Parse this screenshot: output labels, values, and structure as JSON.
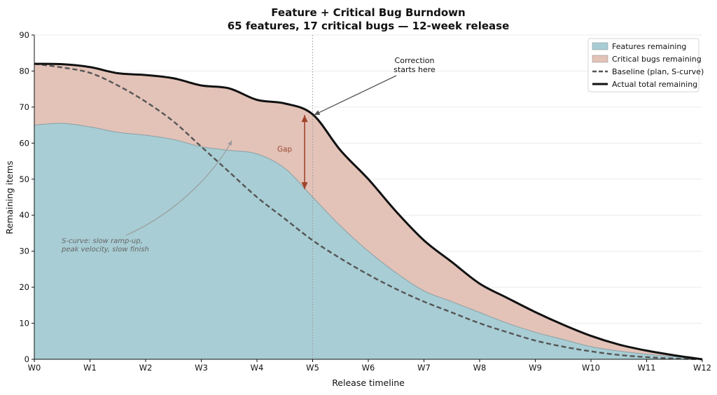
{
  "chart_data": {
    "type": "area",
    "title": "Feature + Critical Bug Burndown",
    "subtitle": "65 features, 17 critical bugs — 12-week release",
    "xlabel": "Release timeline",
    "ylabel": "Remaining items",
    "categories": [
      "W0",
      "W1",
      "W2",
      "W3",
      "W4",
      "W5",
      "W6",
      "W7",
      "W8",
      "W9",
      "W10",
      "W11",
      "W12"
    ],
    "x": [
      0,
      0.5,
      1,
      1.5,
      2,
      2.5,
      3,
      3.5,
      4,
      4.5,
      5,
      5.5,
      6,
      6.5,
      7,
      7.5,
      8,
      8.5,
      9,
      9.5,
      10,
      10.5,
      11,
      11.5,
      12
    ],
    "ylim": [
      0,
      90
    ],
    "yticks": [
      0,
      10,
      20,
      30,
      40,
      50,
      60,
      70,
      80,
      90
    ],
    "grid": "y",
    "legend": "top-right",
    "series": [
      {
        "name": "Features remaining",
        "kind": "stacked-area",
        "color": "#a8cdd4",
        "values": [
          65,
          65.5,
          64.5,
          63,
          62.2,
          61,
          59,
          58,
          57,
          53,
          45,
          37,
          30,
          24,
          19,
          16,
          13,
          10,
          7.5,
          5.5,
          3.5,
          2.3,
          1.4,
          0.7,
          0
        ]
      },
      {
        "name": "Critical bugs remaining",
        "kind": "stacked-area",
        "color": "#e3c2b8",
        "values": [
          17,
          16.4,
          16.6,
          16.4,
          16.7,
          17,
          17,
          17.2,
          15,
          18,
          23,
          21,
          20,
          17,
          14,
          11,
          8,
          7,
          5.6,
          4.1,
          3,
          1.8,
          1,
          0.4,
          0
        ]
      },
      {
        "name": "Baseline (plan, S-curve)",
        "kind": "line",
        "style": "dashed",
        "color": "#555555",
        "values": [
          82,
          81,
          79.5,
          76,
          71.5,
          66,
          59,
          52,
          45,
          39,
          33,
          28,
          23.5,
          19.5,
          16,
          13,
          10,
          7.5,
          5.2,
          3.5,
          2.2,
          1.2,
          0.6,
          0.2,
          0
        ]
      },
      {
        "name": "Actual total remaining",
        "kind": "line",
        "style": "solid",
        "color": "#111111",
        "values": [
          82,
          81.9,
          81.1,
          79.4,
          78.9,
          78,
          76,
          75.2,
          72,
          71,
          68,
          58,
          50,
          41,
          33,
          27,
          21,
          17,
          13.1,
          9.6,
          6.5,
          4.1,
          2.4,
          1.1,
          0
        ]
      }
    ],
    "annotations": [
      {
        "id": "correction",
        "text_lines": [
          "Correction",
          "starts here"
        ],
        "target_x": 5,
        "target_y": 68
      },
      {
        "id": "gap",
        "text": "Gap",
        "x": 4.85,
        "y_top": 68,
        "y_bottom": 47,
        "color": "#a0432a"
      },
      {
        "id": "s-curve",
        "text_lines": [
          "S-curve: slow ramp-up,",
          "peak velocity, slow finish"
        ],
        "target_x": 3.5,
        "target_y": 65
      }
    ],
    "vline": {
      "x": 5,
      "style": "dotted",
      "color": "#999999"
    }
  }
}
